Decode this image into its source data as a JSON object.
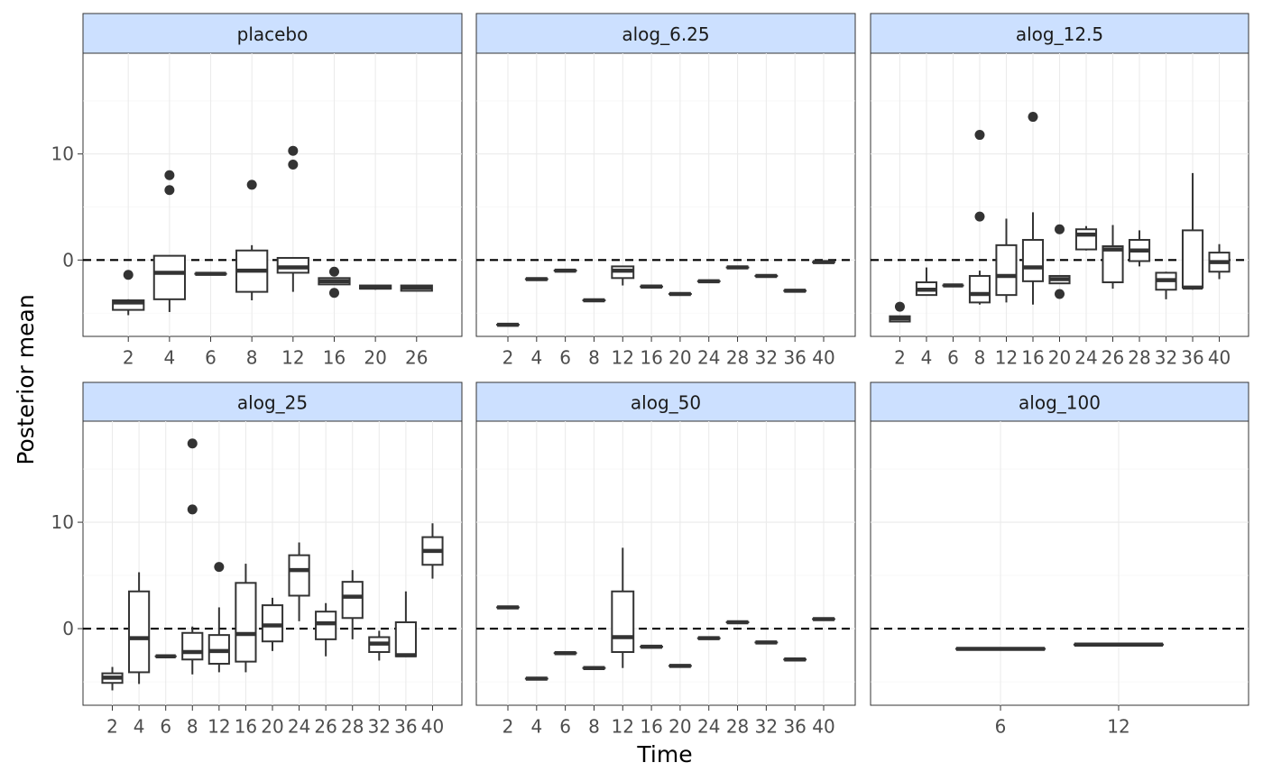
{
  "chart_data": {
    "type": "boxplot",
    "xlabel": "Time",
    "ylabel": "Posterior mean",
    "ylim": [
      -7.2,
      19.5
    ],
    "y_ticks": [
      0,
      10
    ],
    "reference_line": {
      "y": 0,
      "style": "dashed"
    },
    "grid": true,
    "facet_strip_color": "#cce0ff",
    "colors": {
      "box_stroke": "#333333",
      "reference_line": "#000000",
      "grid": "#ebebeb"
    },
    "panels": [
      {
        "name": "placebo",
        "categories": [
          "2",
          "4",
          "6",
          "8",
          "12",
          "16",
          "20",
          "26"
        ],
        "boxes": [
          {
            "x": "2",
            "lower_whisker": -5.2,
            "q1": -4.7,
            "median": -4.0,
            "q3": -3.8,
            "upper_whisker": -3.7,
            "outliers": [
              -1.4
            ]
          },
          {
            "x": "4",
            "lower_whisker": -4.9,
            "q1": -3.7,
            "median": -1.2,
            "q3": 0.4,
            "upper_whisker": 0.4,
            "outliers": [
              6.6,
              8.0
            ]
          },
          {
            "x": "6",
            "lower_whisker": -1.3,
            "q1": -1.3,
            "median": -1.3,
            "q3": -1.3,
            "upper_whisker": -1.3,
            "outliers": []
          },
          {
            "x": "8",
            "lower_whisker": -3.8,
            "q1": -3.0,
            "median": -1.0,
            "q3": 0.9,
            "upper_whisker": 1.4,
            "outliers": [
              7.1
            ]
          },
          {
            "x": "12",
            "lower_whisker": -3.0,
            "q1": -1.2,
            "median": -0.7,
            "q3": 0.2,
            "upper_whisker": 0.2,
            "outliers": [
              9.0,
              10.3
            ]
          },
          {
            "x": "16",
            "lower_whisker": -2.3,
            "q1": -2.3,
            "median": -2.0,
            "q3": -1.7,
            "upper_whisker": -1.7,
            "outliers": [
              -1.1,
              -3.1
            ]
          },
          {
            "x": "20",
            "lower_whisker": -2.8,
            "q1": -2.7,
            "median": -2.6,
            "q3": -2.4,
            "upper_whisker": -2.4,
            "outliers": []
          },
          {
            "x": "26",
            "lower_whisker": -2.9,
            "q1": -2.9,
            "median": -2.6,
            "q3": -2.4,
            "upper_whisker": -2.4,
            "outliers": []
          }
        ]
      },
      {
        "name": "alog_6.25",
        "categories": [
          "2",
          "4",
          "6",
          "8",
          "12",
          "16",
          "20",
          "24",
          "28",
          "32",
          "36",
          "40"
        ],
        "boxes": [
          {
            "x": "2",
            "lower_whisker": -6.1,
            "q1": -6.1,
            "median": -6.1,
            "q3": -6.1,
            "upper_whisker": -6.1,
            "outliers": []
          },
          {
            "x": "4",
            "lower_whisker": -1.8,
            "q1": -1.8,
            "median": -1.8,
            "q3": -1.8,
            "upper_whisker": -1.8,
            "outliers": []
          },
          {
            "x": "6",
            "lower_whisker": -1.0,
            "q1": -1.0,
            "median": -1.0,
            "q3": -1.0,
            "upper_whisker": -1.0,
            "outliers": []
          },
          {
            "x": "8",
            "lower_whisker": -3.8,
            "q1": -3.8,
            "median": -3.8,
            "q3": -3.8,
            "upper_whisker": -3.8,
            "outliers": []
          },
          {
            "x": "12",
            "lower_whisker": -2.4,
            "q1": -1.7,
            "median": -1.0,
            "q3": -0.6,
            "upper_whisker": -0.6,
            "outliers": []
          },
          {
            "x": "16",
            "lower_whisker": -2.5,
            "q1": -2.5,
            "median": -2.5,
            "q3": -2.5,
            "upper_whisker": -2.5,
            "outliers": []
          },
          {
            "x": "20",
            "lower_whisker": -3.2,
            "q1": -3.2,
            "median": -3.2,
            "q3": -3.2,
            "upper_whisker": -3.2,
            "outliers": []
          },
          {
            "x": "24",
            "lower_whisker": -2.0,
            "q1": -2.0,
            "median": -2.0,
            "q3": -2.0,
            "upper_whisker": -2.0,
            "outliers": []
          },
          {
            "x": "28",
            "lower_whisker": -0.7,
            "q1": -0.7,
            "median": -0.7,
            "q3": -0.7,
            "upper_whisker": -0.7,
            "outliers": []
          },
          {
            "x": "32",
            "lower_whisker": -1.5,
            "q1": -1.5,
            "median": -1.5,
            "q3": -1.5,
            "upper_whisker": -1.5,
            "outliers": []
          },
          {
            "x": "36",
            "lower_whisker": -2.9,
            "q1": -2.9,
            "median": -2.9,
            "q3": -2.9,
            "upper_whisker": -2.9,
            "outliers": []
          },
          {
            "x": "40",
            "lower_whisker": -0.2,
            "q1": -0.2,
            "median": -0.2,
            "q3": -0.2,
            "upper_whisker": -0.2,
            "outliers": []
          }
        ]
      },
      {
        "name": "alog_12.5",
        "categories": [
          "2",
          "4",
          "6",
          "8",
          "12",
          "16",
          "20",
          "24",
          "26",
          "28",
          "32",
          "36",
          "40"
        ],
        "boxes": [
          {
            "x": "2",
            "lower_whisker": -5.8,
            "q1": -5.8,
            "median": -5.5,
            "q3": -5.3,
            "upper_whisker": -5.3,
            "outliers": [
              -4.4
            ]
          },
          {
            "x": "4",
            "lower_whisker": -3.3,
            "q1": -3.3,
            "median": -2.8,
            "q3": -2.1,
            "upper_whisker": -0.7,
            "outliers": []
          },
          {
            "x": "6",
            "lower_whisker": -2.4,
            "q1": -2.4,
            "median": -2.4,
            "q3": -2.4,
            "upper_whisker": -2.4,
            "outliers": []
          },
          {
            "x": "8",
            "lower_whisker": -4.2,
            "q1": -4.0,
            "median": -3.2,
            "q3": -1.5,
            "upper_whisker": -1.0,
            "outliers": [
              4.1,
              11.8
            ]
          },
          {
            "x": "12",
            "lower_whisker": -4.0,
            "q1": -3.3,
            "median": -1.5,
            "q3": 1.4,
            "upper_whisker": 3.9,
            "outliers": []
          },
          {
            "x": "16",
            "lower_whisker": -4.2,
            "q1": -2.0,
            "median": -0.7,
            "q3": 1.9,
            "upper_whisker": 4.5,
            "outliers": [
              13.5
            ]
          },
          {
            "x": "20",
            "lower_whisker": -2.2,
            "q1": -2.2,
            "median": -1.8,
            "q3": -1.5,
            "upper_whisker": -1.5,
            "outliers": [
              2.9,
              -3.2
            ]
          },
          {
            "x": "24",
            "lower_whisker": 0.9,
            "q1": 1.0,
            "median": 2.4,
            "q3": 2.9,
            "upper_whisker": 3.2,
            "outliers": []
          },
          {
            "x": "26",
            "lower_whisker": -2.7,
            "q1": -2.1,
            "median": 1.0,
            "q3": 1.3,
            "upper_whisker": 3.3,
            "outliers": []
          },
          {
            "x": "28",
            "lower_whisker": -0.6,
            "q1": -0.1,
            "median": 0.9,
            "q3": 1.9,
            "upper_whisker": 2.8,
            "outliers": []
          },
          {
            "x": "32",
            "lower_whisker": -3.7,
            "q1": -2.8,
            "median": -1.9,
            "q3": -1.2,
            "upper_whisker": -1.1,
            "outliers": []
          },
          {
            "x": "36",
            "lower_whisker": -2.8,
            "q1": -2.6,
            "median": -2.6,
            "q3": 2.8,
            "upper_whisker": 8.2,
            "outliers": []
          },
          {
            "x": "40",
            "lower_whisker": -1.8,
            "q1": -1.1,
            "median": -0.2,
            "q3": 0.7,
            "upper_whisker": 1.5,
            "outliers": []
          }
        ]
      },
      {
        "name": "alog_25",
        "categories": [
          "2",
          "4",
          "6",
          "8",
          "12",
          "16",
          "20",
          "24",
          "26",
          "28",
          "32",
          "36",
          "40"
        ],
        "boxes": [
          {
            "x": "2",
            "lower_whisker": -5.8,
            "q1": -5.1,
            "median": -4.6,
            "q3": -4.2,
            "upper_whisker": -3.6,
            "outliers": []
          },
          {
            "x": "4",
            "lower_whisker": -5.2,
            "q1": -4.1,
            "median": -0.9,
            "q3": 3.5,
            "upper_whisker": 5.3,
            "outliers": []
          },
          {
            "x": "6",
            "lower_whisker": -2.6,
            "q1": -2.6,
            "median": -2.6,
            "q3": -2.6,
            "upper_whisker": -2.6,
            "outliers": []
          },
          {
            "x": "8",
            "lower_whisker": -4.3,
            "q1": -2.9,
            "median": -2.2,
            "q3": -0.4,
            "upper_whisker": 0.2,
            "outliers": [
              11.2,
              17.4
            ]
          },
          {
            "x": "12",
            "lower_whisker": -4.1,
            "q1": -3.3,
            "median": -2.1,
            "q3": -0.6,
            "upper_whisker": 2.0,
            "outliers": [
              5.8
            ]
          },
          {
            "x": "16",
            "lower_whisker": -4.1,
            "q1": -3.1,
            "median": -0.5,
            "q3": 4.3,
            "upper_whisker": 6.1,
            "outliers": []
          },
          {
            "x": "20",
            "lower_whisker": -2.1,
            "q1": -1.2,
            "median": 0.3,
            "q3": 2.2,
            "upper_whisker": 2.9,
            "outliers": []
          },
          {
            "x": "24",
            "lower_whisker": 0.7,
            "q1": 3.1,
            "median": 5.5,
            "q3": 6.9,
            "upper_whisker": 8.1,
            "outliers": []
          },
          {
            "x": "26",
            "lower_whisker": -2.6,
            "q1": -1.0,
            "median": 0.5,
            "q3": 1.6,
            "upper_whisker": 2.4,
            "outliers": []
          },
          {
            "x": "28",
            "lower_whisker": -1.0,
            "q1": 1.0,
            "median": 3.0,
            "q3": 4.4,
            "upper_whisker": 5.5,
            "outliers": []
          },
          {
            "x": "32",
            "lower_whisker": -3.0,
            "q1": -2.2,
            "median": -1.4,
            "q3": -0.8,
            "upper_whisker": -0.2,
            "outliers": []
          },
          {
            "x": "36",
            "lower_whisker": -2.6,
            "q1": -2.6,
            "median": -2.5,
            "q3": 0.6,
            "upper_whisker": 3.5,
            "outliers": []
          },
          {
            "x": "40",
            "lower_whisker": 4.7,
            "q1": 6.0,
            "median": 7.3,
            "q3": 8.6,
            "upper_whisker": 9.9,
            "outliers": []
          }
        ]
      },
      {
        "name": "alog_50",
        "categories": [
          "2",
          "4",
          "6",
          "8",
          "12",
          "16",
          "20",
          "24",
          "28",
          "32",
          "36",
          "40"
        ],
        "boxes": [
          {
            "x": "2",
            "lower_whisker": 2.0,
            "q1": 2.0,
            "median": 2.0,
            "q3": 2.0,
            "upper_whisker": 2.0,
            "outliers": []
          },
          {
            "x": "4",
            "lower_whisker": -4.7,
            "q1": -4.7,
            "median": -4.7,
            "q3": -4.7,
            "upper_whisker": -4.7,
            "outliers": []
          },
          {
            "x": "6",
            "lower_whisker": -2.3,
            "q1": -2.3,
            "median": -2.3,
            "q3": -2.3,
            "upper_whisker": -2.3,
            "outliers": []
          },
          {
            "x": "8",
            "lower_whisker": -3.7,
            "q1": -3.7,
            "median": -3.7,
            "q3": -3.7,
            "upper_whisker": -3.7,
            "outliers": []
          },
          {
            "x": "12",
            "lower_whisker": -3.7,
            "q1": -2.2,
            "median": -0.8,
            "q3": 3.5,
            "upper_whisker": 7.6,
            "outliers": []
          },
          {
            "x": "16",
            "lower_whisker": -1.7,
            "q1": -1.7,
            "median": -1.7,
            "q3": -1.7,
            "upper_whisker": -1.7,
            "outliers": []
          },
          {
            "x": "20",
            "lower_whisker": -3.5,
            "q1": -3.5,
            "median": -3.5,
            "q3": -3.5,
            "upper_whisker": -3.5,
            "outliers": []
          },
          {
            "x": "24",
            "lower_whisker": -0.9,
            "q1": -0.9,
            "median": -0.9,
            "q3": -0.9,
            "upper_whisker": -0.9,
            "outliers": []
          },
          {
            "x": "28",
            "lower_whisker": 0.6,
            "q1": 0.6,
            "median": 0.6,
            "q3": 0.6,
            "upper_whisker": 0.6,
            "outliers": []
          },
          {
            "x": "32",
            "lower_whisker": -1.3,
            "q1": -1.3,
            "median": -1.3,
            "q3": -1.3,
            "upper_whisker": -1.3,
            "outliers": []
          },
          {
            "x": "36",
            "lower_whisker": -2.9,
            "q1": -2.9,
            "median": -2.9,
            "q3": -2.9,
            "upper_whisker": -2.9,
            "outliers": []
          },
          {
            "x": "40",
            "lower_whisker": 0.9,
            "q1": 0.9,
            "median": 0.9,
            "q3": 0.9,
            "upper_whisker": 0.9,
            "outliers": []
          }
        ]
      },
      {
        "name": "alog_100",
        "categories": [
          "6",
          "12"
        ],
        "boxes": [
          {
            "x": "6",
            "lower_whisker": -1.9,
            "q1": -1.9,
            "median": -1.9,
            "q3": -1.9,
            "upper_whisker": -1.9,
            "outliers": []
          },
          {
            "x": "12",
            "lower_whisker": -1.5,
            "q1": -1.5,
            "median": -1.5,
            "q3": -1.5,
            "upper_whisker": -1.5,
            "outliers": []
          }
        ]
      }
    ]
  }
}
